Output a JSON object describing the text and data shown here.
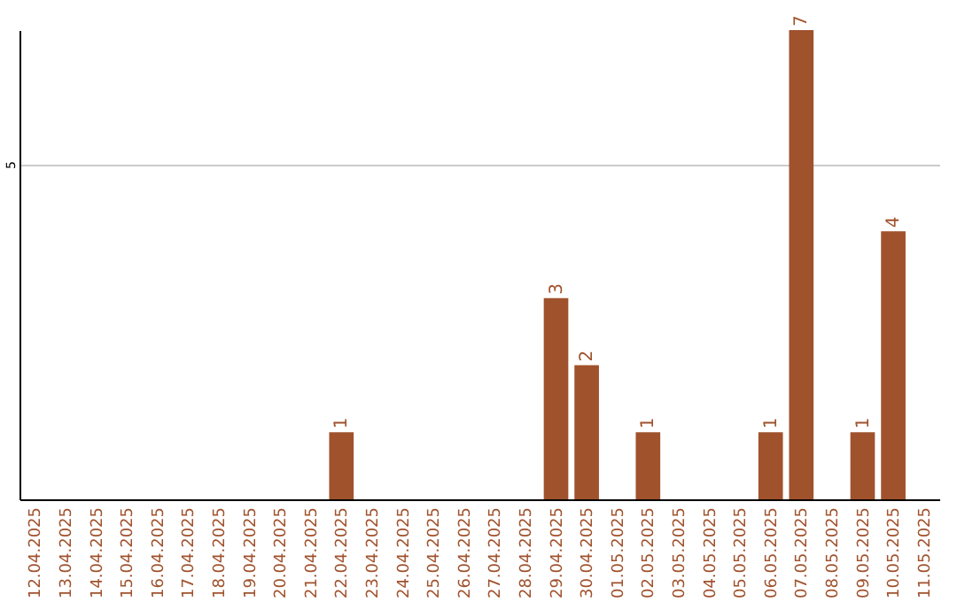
{
  "chart_data": {
    "type": "bar",
    "categories": [
      "12.04.2025",
      "13.04.2025",
      "14.04.2025",
      "15.04.2025",
      "16.04.2025",
      "17.04.2025",
      "18.04.2025",
      "19.04.2025",
      "20.04.2025",
      "21.04.2025",
      "22.04.2025",
      "23.04.2025",
      "24.04.2025",
      "25.04.2025",
      "26.04.2025",
      "27.04.2025",
      "28.04.2025",
      "29.04.2025",
      "30.04.2025",
      "01.05.2025",
      "02.05.2025",
      "03.05.2025",
      "04.05.2025",
      "05.05.2025",
      "06.05.2025",
      "07.05.2025",
      "08.05.2025",
      "09.05.2025",
      "10.05.2025",
      "11.05.2025"
    ],
    "values": [
      0,
      0,
      0,
      0,
      0,
      0,
      0,
      0,
      0,
      0,
      1,
      0,
      0,
      0,
      0,
      0,
      0,
      3,
      2,
      0,
      1,
      0,
      0,
      0,
      1,
      7,
      0,
      1,
      4,
      0
    ],
    "value_labels": [
      null,
      null,
      null,
      null,
      null,
      null,
      null,
      null,
      null,
      null,
      "1",
      null,
      null,
      null,
      null,
      null,
      null,
      "3",
      "2",
      null,
      "1",
      null,
      null,
      null,
      "1",
      "7",
      null,
      "1",
      "4",
      null
    ],
    "color": "#a0522d",
    "ylim": [
      0,
      7
    ],
    "yticks": [
      5
    ],
    "grid": "y"
  }
}
